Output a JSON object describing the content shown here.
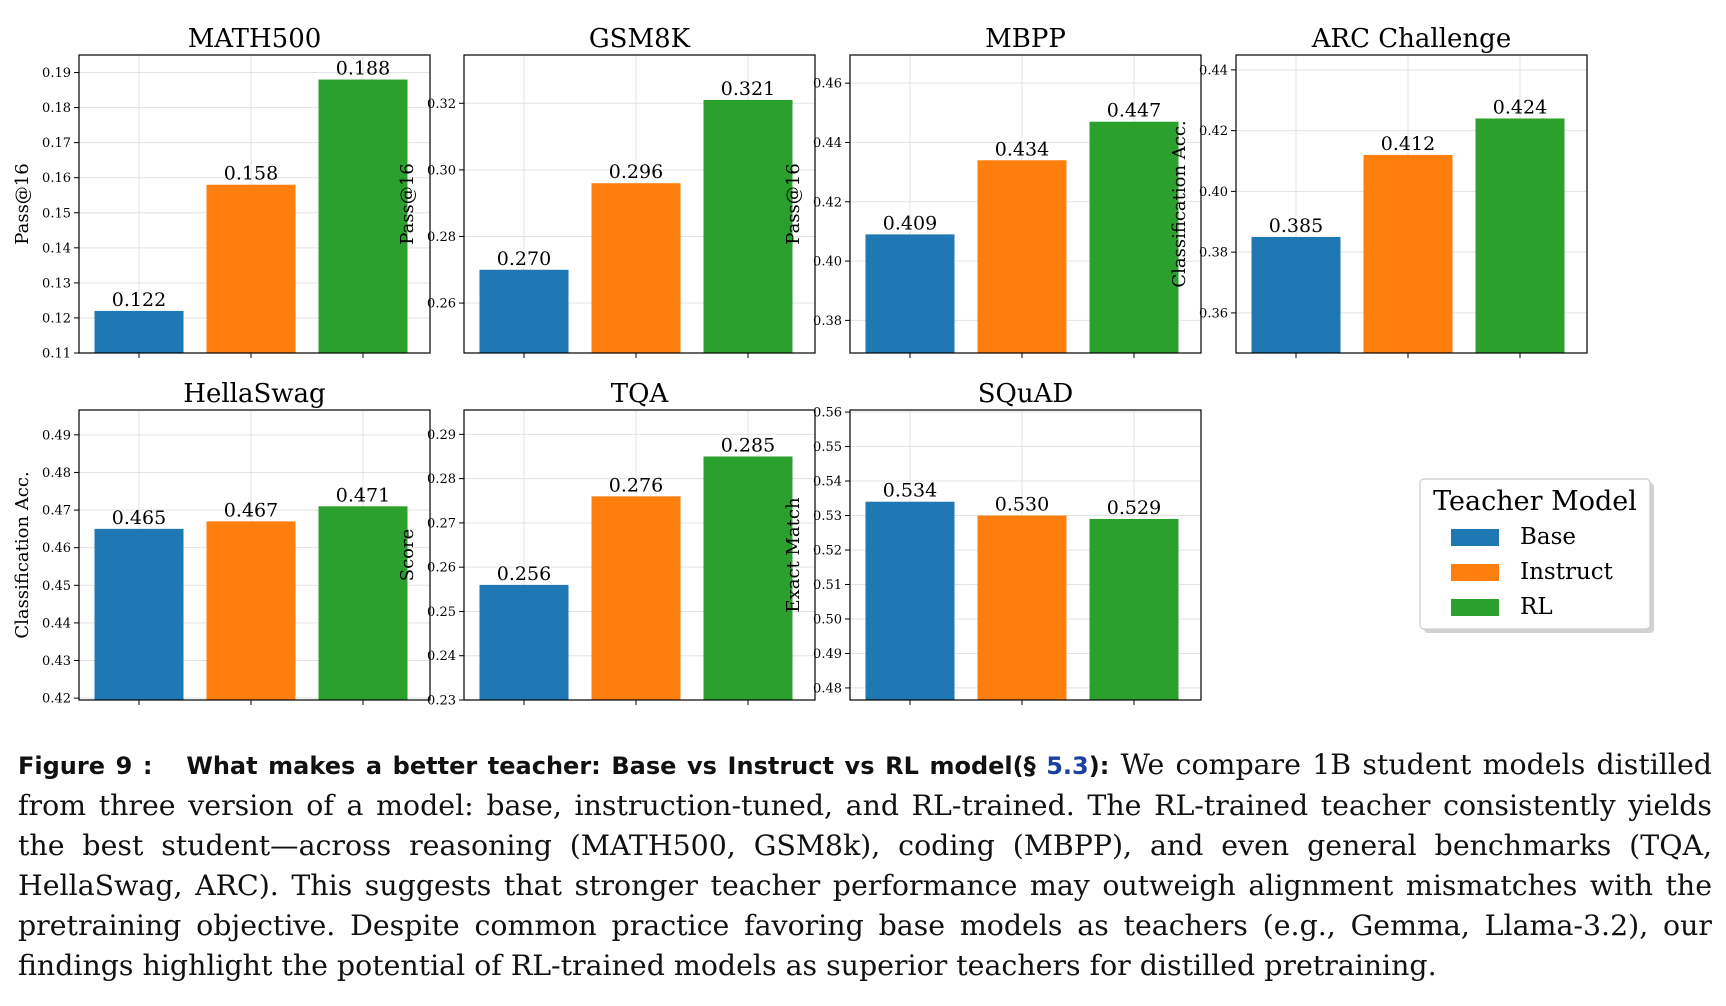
{
  "chart_data": [
    {
      "type": "bar",
      "title": "MATH500",
      "ylabel": "Pass@16",
      "categories": [
        "Base",
        "Instruct",
        "RL"
      ],
      "values": [
        0.122,
        0.158,
        0.188
      ],
      "value_labels": [
        "0.122",
        "0.158",
        "0.188"
      ],
      "ylim": [
        0.11,
        0.195
      ],
      "yticks": [
        "0.11",
        "0.12",
        "0.13",
        "0.14",
        "0.15",
        "0.16",
        "0.17",
        "0.18",
        "0.19"
      ],
      "grid": true
    },
    {
      "type": "bar",
      "title": "GSM8K",
      "ylabel": "Pass@16",
      "categories": [
        "Base",
        "Instruct",
        "RL"
      ],
      "values": [
        0.27,
        0.296,
        0.321
      ],
      "value_labels": [
        "0.270",
        "0.296",
        "0.321"
      ],
      "ylim": [
        0.245,
        0.3345
      ],
      "yticks": [
        "0.26",
        "0.28",
        "0.30",
        "0.32"
      ],
      "grid": true
    },
    {
      "type": "bar",
      "title": "MBPP",
      "ylabel": "Pass@16",
      "categories": [
        "Base",
        "Instruct",
        "RL"
      ],
      "values": [
        0.409,
        0.434,
        0.447
      ],
      "value_labels": [
        "0.409",
        "0.434",
        "0.447"
      ],
      "ylim": [
        0.369,
        0.4695
      ],
      "yticks": [
        "0.38",
        "0.40",
        "0.42",
        "0.44",
        "0.46"
      ],
      "grid": true
    },
    {
      "type": "bar",
      "title": "ARC Challenge",
      "ylabel": "Classification Acc.",
      "categories": [
        "Base",
        "Instruct",
        "RL"
      ],
      "values": [
        0.385,
        0.412,
        0.424
      ],
      "value_labels": [
        "0.385",
        "0.412",
        "0.424"
      ],
      "ylim": [
        0.3468,
        0.4449
      ],
      "yticks": [
        "0.36",
        "0.38",
        "0.40",
        "0.42",
        "0.44"
      ],
      "grid": true
    },
    {
      "type": "bar",
      "title": "HellaSwag",
      "ylabel": "Classification Acc.",
      "categories": [
        "Base",
        "Instruct",
        "RL"
      ],
      "values": [
        0.465,
        0.467,
        0.471
      ],
      "value_labels": [
        "0.465",
        "0.467",
        "0.471"
      ],
      "ylim": [
        0.4195,
        0.4966
      ],
      "yticks": [
        "0.42",
        "0.43",
        "0.44",
        "0.45",
        "0.46",
        "0.47",
        "0.48",
        "0.49"
      ],
      "grid": true
    },
    {
      "type": "bar",
      "title": "TQA",
      "ylabel": "Score",
      "categories": [
        "Base",
        "Instruct",
        "RL"
      ],
      "values": [
        0.256,
        0.276,
        0.285
      ],
      "value_labels": [
        "0.256",
        "0.276",
        "0.285"
      ],
      "ylim": [
        0.23,
        0.2955
      ],
      "yticks": [
        "0.23",
        "0.24",
        "0.25",
        "0.26",
        "0.27",
        "0.28",
        "0.29"
      ],
      "grid": true
    },
    {
      "type": "bar",
      "title": "SQuAD",
      "ylabel": "Exact Match",
      "categories": [
        "Base",
        "Instruct",
        "RL"
      ],
      "values": [
        0.534,
        0.53,
        0.529
      ],
      "value_labels": [
        "0.534",
        "0.530",
        "0.529"
      ],
      "ylim": [
        0.4765,
        0.5606
      ],
      "yticks": [
        "0.48",
        "0.49",
        "0.50",
        "0.51",
        "0.52",
        "0.53",
        "0.54",
        "0.55",
        "0.56"
      ],
      "grid": true
    }
  ],
  "legend": {
    "title": "Teacher Model",
    "placement": "bottom-right",
    "entries": [
      {
        "label": "Base",
        "color": "#1f77b4"
      },
      {
        "label": "Instruct",
        "color": "#ff7f0e"
      },
      {
        "label": "RL",
        "color": "#2ca02c"
      }
    ]
  },
  "colors": {
    "Base": "#1f77b4",
    "Instruct": "#ff7f0e",
    "RL": "#2ca02c"
  },
  "caption": {
    "label": "Figure 9 :",
    "title_before_ref": "What makes a better teacher: Base vs Instruct vs RL model(§ ",
    "ref": "5.3",
    "title_after_ref": "):",
    "body": " We compare 1B student models distilled from three version of a model: base, instruction-tuned, and RL-trained. The RL-trained teacher consistently yields the best student—across reasoning (MATH500, GSM8k), coding (MBPP), and even general benchmarks (TQA, HellaSwag, ARC). This suggests that stronger teacher performance may outweigh alignment mismatches with the pretraining objective. Despite common practice favoring base models as teachers (e.g., Gemma, Llama-3.2), our findings highlight the potential of RL-trained models as superior teachers for distilled pretraining."
  }
}
